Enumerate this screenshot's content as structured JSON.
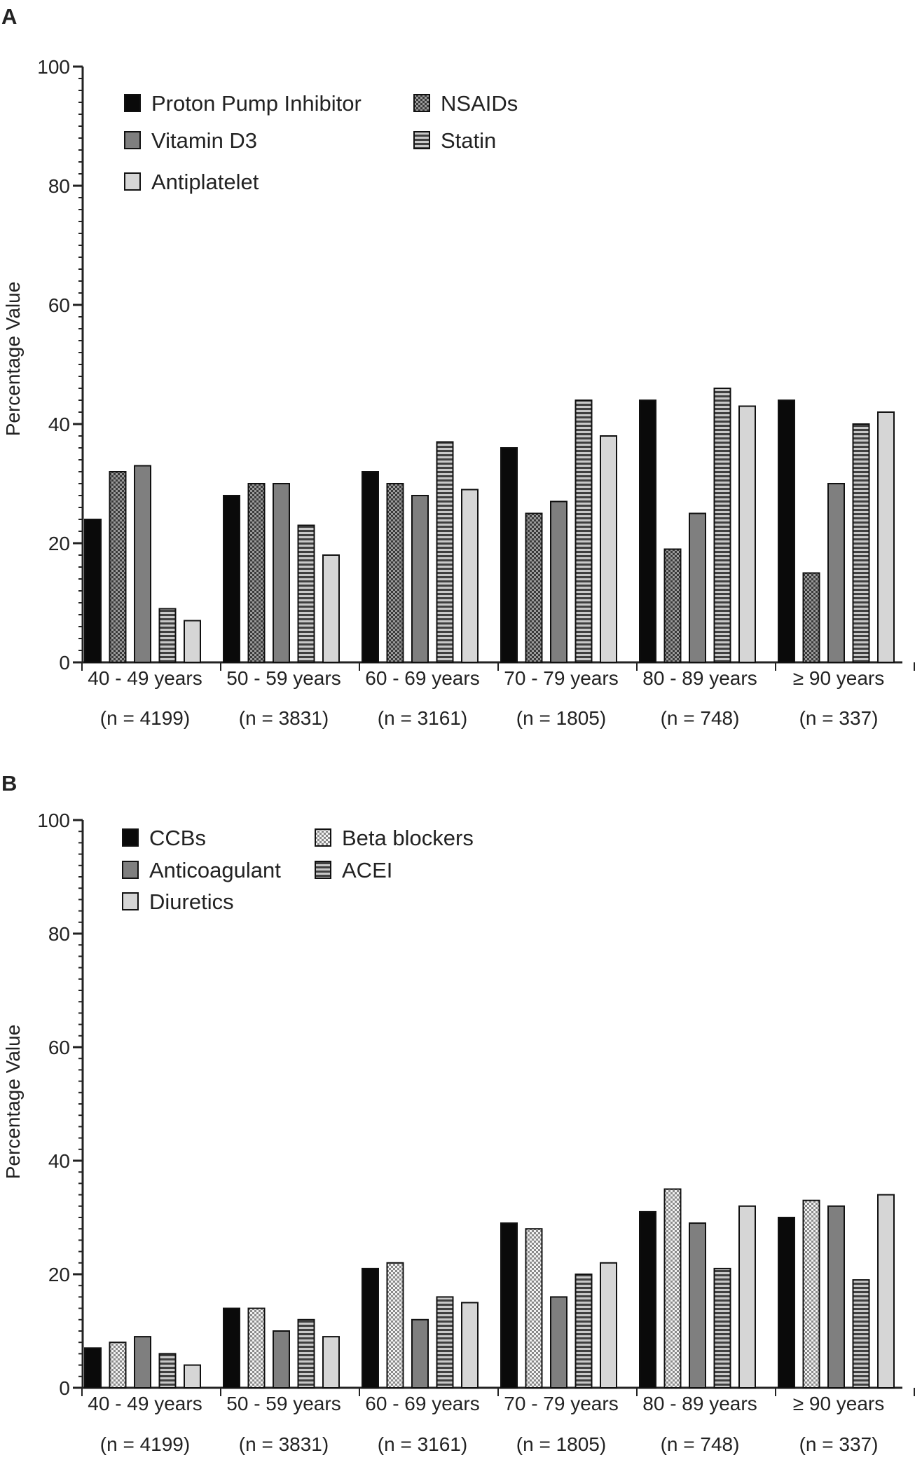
{
  "chart_data": [
    {
      "panel_label": "A",
      "type": "bar",
      "ylabel": "Percentage Value",
      "ylim": [
        0,
        100
      ],
      "yticks": [
        0,
        20,
        40,
        60,
        80,
        100
      ],
      "categories": [
        "40 - 49 years",
        "50 - 59 years",
        "60 - 69 years",
        "70 - 79 years",
        "80 - 89 years",
        "≥ 90 years"
      ],
      "sample_sizes": [
        "(n = 4199)",
        "(n = 3831)",
        "(n = 3161)",
        "(n = 1805)",
        "(n = 748)",
        "(n = 337)"
      ],
      "series": [
        {
          "name": "Proton Pump Inhibitor",
          "pattern": "solid-black",
          "values": [
            24,
            28,
            32,
            36,
            44,
            44
          ]
        },
        {
          "name": "NSAIDs",
          "pattern": "dark-check",
          "values": [
            32,
            30,
            30,
            25,
            19,
            15
          ]
        },
        {
          "name": "Vitamin D3",
          "pattern": "mid-gray",
          "values": [
            33,
            30,
            28,
            27,
            25,
            30
          ]
        },
        {
          "name": "Statin",
          "pattern": "horizontal-stripes",
          "values": [
            9,
            23,
            37,
            44,
            46,
            40
          ]
        },
        {
          "name": "Antiplatelet",
          "pattern": "light-gray",
          "values": [
            7,
            18,
            29,
            38,
            43,
            42
          ]
        }
      ]
    },
    {
      "panel_label": "B",
      "type": "bar",
      "ylabel": "Percentage Value",
      "ylim": [
        0,
        100
      ],
      "yticks": [
        0,
        20,
        40,
        60,
        80,
        100
      ],
      "categories": [
        "40 - 49 years",
        "50 - 59 years",
        "60 - 69 years",
        "70 - 79 years",
        "80 - 89 years",
        "≥ 90 years"
      ],
      "sample_sizes": [
        "(n = 4199)",
        "(n = 3831)",
        "(n = 3161)",
        "(n = 1805)",
        "(n = 748)",
        "(n = 337)"
      ],
      "series": [
        {
          "name": "CCBs",
          "pattern": "solid-black",
          "values": [
            7,
            14,
            21,
            29,
            31,
            30
          ]
        },
        {
          "name": "Beta blockers",
          "pattern": "light-check",
          "values": [
            8,
            14,
            22,
            28,
            35,
            33
          ]
        },
        {
          "name": "Anticoagulant",
          "pattern": "mid-gray",
          "values": [
            9,
            10,
            12,
            16,
            29,
            32
          ]
        },
        {
          "name": "ACEI",
          "pattern": "horizontal-stripes",
          "values": [
            6,
            12,
            16,
            20,
            21,
            19
          ]
        },
        {
          "name": "Diuretics",
          "pattern": "light-gray",
          "values": [
            4,
            9,
            15,
            22,
            32,
            34
          ]
        }
      ]
    }
  ]
}
